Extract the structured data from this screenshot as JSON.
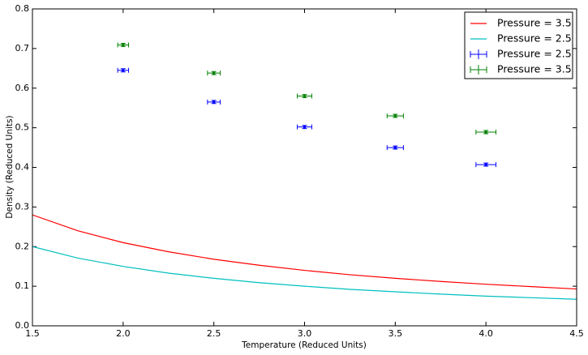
{
  "chart_data": {
    "type": "line",
    "xlabel": "Temperature (Reduced Units)",
    "ylabel": "Density (Reduced Units)",
    "xlim": [
      1.5,
      4.5
    ],
    "ylim": [
      0,
      0.8
    ],
    "xticks": [
      1.5,
      {
        "value": 2,
        "label": "2.0"
      },
      2.5,
      {
        "value": 3,
        "label": "3.0"
      },
      3.5,
      {
        "value": 4,
        "label": "4.0"
      },
      4.5
    ],
    "yticks": [
      {
        "value": 0,
        "label": "0.0"
      },
      0.1,
      0.2,
      0.3,
      0.4,
      0.5,
      0.6,
      0.7,
      0.8
    ],
    "grid": false,
    "legend": "upper-right",
    "series": [
      {
        "name": "Pressure = 3.5",
        "kind": "line",
        "color": "#ff0000",
        "x": [
          1.5,
          1.75,
          2.0,
          2.25,
          2.5,
          2.75,
          3.0,
          3.25,
          3.5,
          3.75,
          4.0,
          4.25,
          4.5
        ],
        "values": [
          0.28,
          0.24,
          0.21,
          0.187,
          0.168,
          0.153,
          0.14,
          0.129,
          0.12,
          0.112,
          0.105,
          0.099,
          0.093
        ]
      },
      {
        "name": "Pressure = 2.5",
        "kind": "line",
        "color": "#00bfbf",
        "x": [
          1.5,
          1.75,
          2.0,
          2.25,
          2.5,
          2.75,
          3.0,
          3.25,
          3.5,
          3.75,
          4.0,
          4.25,
          4.5
        ],
        "values": [
          0.2,
          0.171,
          0.15,
          0.133,
          0.12,
          0.109,
          0.1,
          0.092,
          0.086,
          0.08,
          0.075,
          0.071,
          0.067
        ]
      },
      {
        "name": "Pressure = 2.5",
        "kind": "errorbar",
        "color": "#0000ff",
        "x": [
          2.0,
          2.5,
          3.0,
          3.5,
          4.0
        ],
        "values": [
          0.645,
          0.565,
          0.502,
          0.45,
          0.407
        ],
        "xerr": [
          0.03,
          0.035,
          0.04,
          0.045,
          0.055
        ],
        "yerr": [
          0.004,
          0.004,
          0.004,
          0.004,
          0.004
        ]
      },
      {
        "name": "Pressure = 3.5",
        "kind": "errorbar",
        "color": "#008000",
        "x": [
          2.0,
          2.5,
          3.0,
          3.5,
          4.0
        ],
        "values": [
          0.709,
          0.638,
          0.58,
          0.53,
          0.489
        ],
        "xerr": [
          0.03,
          0.035,
          0.04,
          0.045,
          0.055
        ],
        "yerr": [
          0.004,
          0.004,
          0.004,
          0.004,
          0.004
        ]
      }
    ]
  }
}
